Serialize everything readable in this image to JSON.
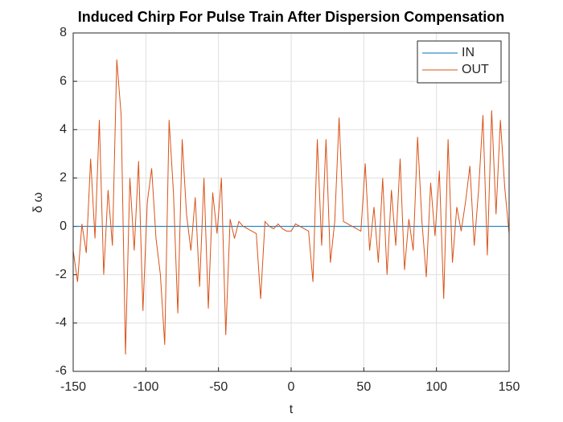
{
  "chart_data": {
    "type": "line",
    "title": "Induced Chirp For Pulse Train After Dispersion Compensation",
    "xlabel": "t",
    "ylabel": "δ ω",
    "x": [
      -150,
      -147,
      -144,
      -141,
      -138,
      -135,
      -132,
      -129,
      -126,
      -123,
      -120,
      -117,
      -114,
      -111,
      -108,
      -105,
      -102,
      -99,
      -96,
      -93,
      -90,
      -87,
      -84,
      -81,
      -78,
      -75,
      -72,
      -69,
      -66,
      -63,
      -60,
      -57,
      -54,
      -51,
      -48,
      -45,
      -42,
      -39,
      -36,
      -33,
      -30,
      -27,
      -24,
      -21,
      -18,
      -15,
      -12,
      -9,
      -6,
      -3,
      0,
      3,
      6,
      9,
      12,
      15,
      18,
      21,
      24,
      27,
      30,
      33,
      36,
      39,
      42,
      45,
      48,
      51,
      54,
      57,
      60,
      63,
      66,
      69,
      72,
      75,
      78,
      81,
      84,
      87,
      90,
      93,
      96,
      99,
      102,
      105,
      108,
      111,
      114,
      117,
      120,
      123,
      126,
      129,
      132,
      135,
      138,
      141,
      144,
      147,
      150
    ],
    "series": [
      {
        "name": "IN",
        "color": "#0072bd",
        "values": [
          0,
          0,
          0,
          0,
          0,
          0,
          0,
          0,
          0,
          0,
          0,
          0,
          0,
          0,
          0,
          0,
          0,
          0,
          0,
          0,
          0,
          0,
          0,
          0,
          0,
          0,
          0,
          0,
          0,
          0,
          0,
          0,
          0,
          0,
          0,
          0,
          0,
          0,
          0,
          0,
          0,
          0,
          0,
          0,
          0,
          0,
          0,
          0,
          0,
          0,
          0,
          0,
          0,
          0,
          0,
          0,
          0,
          0,
          0,
          0,
          0,
          0,
          0,
          0,
          0,
          0,
          0,
          0,
          0,
          0,
          0,
          0,
          0,
          0,
          0,
          0,
          0,
          0,
          0,
          0,
          0,
          0,
          0,
          0,
          0,
          0,
          0,
          0,
          0,
          0,
          0,
          0,
          0,
          0,
          0,
          0,
          0,
          0,
          0,
          0,
          0
        ]
      },
      {
        "name": "OUT",
        "color": "#d95319",
        "values": [
          -1.0,
          -2.3,
          0.1,
          -1.1,
          2.8,
          -0.5,
          4.4,
          -2.0,
          1.5,
          -0.8,
          6.9,
          4.6,
          -5.3,
          2.0,
          -1.0,
          2.7,
          -3.5,
          1.0,
          2.4,
          -0.5,
          -2.0,
          -4.9,
          4.4,
          1.4,
          -3.6,
          3.6,
          0.5,
          -1.0,
          1.2,
          -2.5,
          2.0,
          -3.4,
          1.4,
          -0.3,
          2.0,
          -4.5,
          0.3,
          -0.5,
          0.2,
          0.0,
          -0.1,
          -0.2,
          -0.3,
          -3.0,
          0.2,
          0.0,
          -0.1,
          0.1,
          -0.1,
          -0.2,
          -0.2,
          0.1,
          0.0,
          -0.1,
          -0.2,
          -2.3,
          3.6,
          -0.8,
          3.6,
          -1.5,
          0.2,
          4.5,
          0.2,
          0.1,
          0.0,
          -0.1,
          -0.2,
          2.6,
          -1.0,
          0.8,
          -1.5,
          2.0,
          -2.0,
          1.5,
          -0.8,
          2.8,
          -1.8,
          0.3,
          -1.0,
          3.7,
          0.2,
          -2.1,
          1.8,
          -0.4,
          2.3,
          -3.0,
          3.6,
          -1.5,
          0.8,
          -0.2,
          1.0,
          2.5,
          -0.8,
          1.5,
          4.6,
          -1.2,
          4.8,
          0.5,
          4.4,
          1.6,
          -0.3
        ]
      }
    ],
    "xlim": [
      -150,
      150
    ],
    "xticks": [
      -150,
      -100,
      -50,
      0,
      50,
      100,
      150
    ],
    "ylim": [
      -6,
      8
    ],
    "yticks": [
      -6,
      -4,
      -2,
      0,
      2,
      4,
      6,
      8
    ],
    "grid": true,
    "legend": "northeast"
  }
}
